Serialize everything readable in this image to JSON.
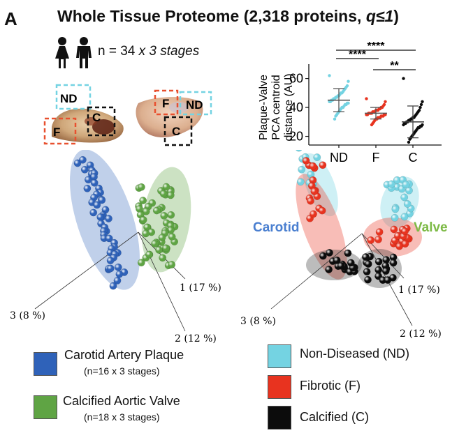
{
  "panel_letter": "A",
  "title": {
    "main": "Whole Tissue Proteome (2,318 proteins, ",
    "q": "q≤1",
    "close": ")"
  },
  "cohort": {
    "prefix": "n = 34",
    "suffix": "x 3 stages"
  },
  "tissue_photo_labels": {
    "carotid": [
      "ND",
      "F",
      "C"
    ],
    "valve": [
      "F",
      "ND",
      "C"
    ]
  },
  "pca_axes": {
    "axis1": "1 (17 %)",
    "axis2": "2 (12 %)",
    "axis3": "3 (8 %)"
  },
  "group_labels": {
    "carotid": "Carotid",
    "valve": "Valve"
  },
  "legend_left": [
    {
      "label": "Carotid Artery Plaque",
      "sub": "(n=16 x 3 stages)",
      "color": "#2f62b9"
    },
    {
      "label": "Calcified Aortic Valve",
      "sub": "(n=18 x 3 stages)",
      "color": "#5fa444"
    }
  ],
  "legend_right": [
    {
      "label": "Non-Diseased (ND)",
      "color": "#74d3e2"
    },
    {
      "label": "Fibrotic (F)",
      "color": "#e8331f"
    },
    {
      "label": "Calcified (C)",
      "color": "#0c0c0c"
    }
  ],
  "colors": {
    "carotid_blue": "#2f62b9",
    "valve_green": "#5fa444",
    "nd_cyan": "#74d3e2",
    "fibrotic_red": "#e8331f",
    "calcified_black": "#0c0c0c"
  },
  "chart_data": {
    "type": "scatter",
    "ylabel": "Plaque-Valve PCA centroid distance (AU)",
    "ylabel_lines": [
      "Plaque-Valve",
      "PCA centroid",
      "distance (AU)"
    ],
    "categories": [
      "ND",
      "F",
      "C"
    ],
    "yticks": [
      20,
      40,
      60
    ],
    "ylim": [
      14,
      68
    ],
    "means": [
      45,
      36,
      30
    ],
    "sd": [
      8,
      4,
      11
    ],
    "significance": [
      {
        "pair": [
          "ND",
          "C"
        ],
        "label": "****"
      },
      {
        "pair": [
          "ND",
          "F"
        ],
        "label": "****"
      },
      {
        "pair": [
          "F",
          "C"
        ],
        "label": "**"
      }
    ],
    "series": [
      {
        "name": "ND",
        "values": [
          62,
          58,
          55,
          54,
          53,
          52,
          51,
          50,
          50,
          49,
          48,
          48,
          47,
          47,
          46,
          46,
          45,
          45,
          44,
          44,
          43,
          43,
          42,
          42,
          41,
          40,
          40,
          39,
          38,
          37,
          36,
          35,
          34,
          32
        ]
      },
      {
        "name": "F",
        "values": [
          46,
          44,
          42,
          41,
          40,
          40,
          39,
          39,
          38,
          38,
          38,
          37,
          37,
          37,
          36,
          36,
          36,
          36,
          35,
          35,
          35,
          35,
          34,
          34,
          34,
          33,
          33,
          33,
          32,
          32,
          31,
          30,
          29,
          28
        ]
      },
      {
        "name": "C",
        "values": [
          60,
          44,
          42,
          40,
          38,
          37,
          36,
          35,
          34,
          33,
          33,
          32,
          32,
          31,
          31,
          30,
          30,
          29,
          29,
          28,
          28,
          27,
          27,
          26,
          26,
          25,
          24,
          23,
          22,
          21,
          20,
          19,
          18,
          16
        ]
      }
    ]
  }
}
